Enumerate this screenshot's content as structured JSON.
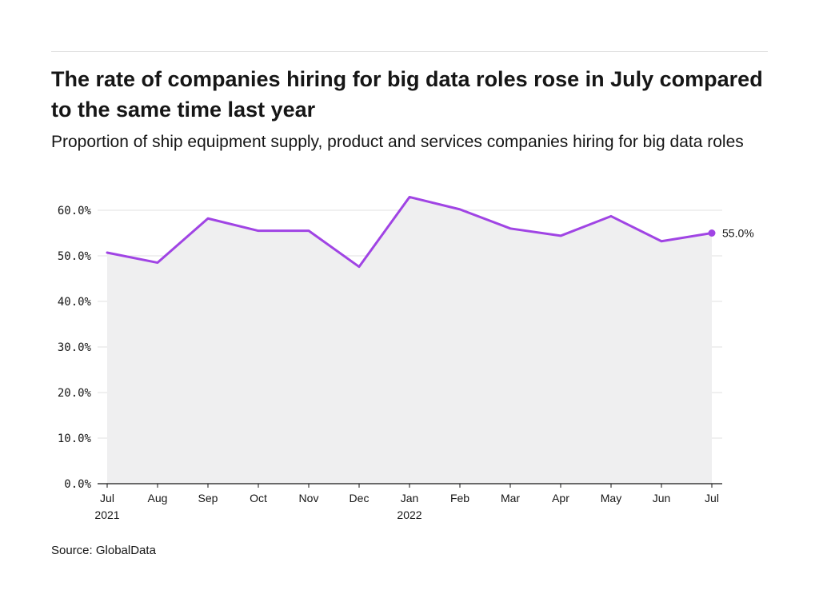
{
  "header": {
    "title": "The rate of companies hiring for big data roles rose in July compared to the same time last year",
    "subtitle": "Proportion of ship equipment supply, product and services companies hiring for big data roles"
  },
  "footer": {
    "source": "Source: GlobalData"
  },
  "colors": {
    "line": "#a044e4",
    "area": "#efeff0",
    "grid": "#e0e0e0",
    "axis": "#161616"
  },
  "chart_data": {
    "type": "area",
    "title": "The rate of companies hiring for big data roles rose in July compared to the same time last year",
    "subtitle": "Proportion of ship equipment supply, product and services companies hiring for big data roles",
    "x_ticks": [
      {
        "label": "Jul",
        "sub": "2021"
      },
      {
        "label": "Aug",
        "sub": ""
      },
      {
        "label": "Sep",
        "sub": ""
      },
      {
        "label": "Oct",
        "sub": ""
      },
      {
        "label": "Nov",
        "sub": ""
      },
      {
        "label": "Dec",
        "sub": ""
      },
      {
        "label": "Jan",
        "sub": "2022"
      },
      {
        "label": "Feb",
        "sub": ""
      },
      {
        "label": "Mar",
        "sub": ""
      },
      {
        "label": "Apr",
        "sub": ""
      },
      {
        "label": "May",
        "sub": ""
      },
      {
        "label": "Jun",
        "sub": ""
      },
      {
        "label": "Jul",
        "sub": ""
      }
    ],
    "categories": [
      "2021-07",
      "2021-08",
      "2021-09",
      "2021-10",
      "2021-11",
      "2021-12",
      "2022-01",
      "2022-02",
      "2022-03",
      "2022-04",
      "2022-05",
      "2022-06",
      "2022-07"
    ],
    "values": [
      50.7,
      48.5,
      58.2,
      55.5,
      55.5,
      47.6,
      62.9,
      60.2,
      56.0,
      54.4,
      58.7,
      53.2,
      55.0
    ],
    "ylim": [
      0,
      60
    ],
    "y_ticks": [
      "0.0%",
      "10.0%",
      "20.0%",
      "30.0%",
      "40.0%",
      "50.0%",
      "60.0%"
    ],
    "end_label": "55.0%",
    "grid": true,
    "legend": "none"
  }
}
